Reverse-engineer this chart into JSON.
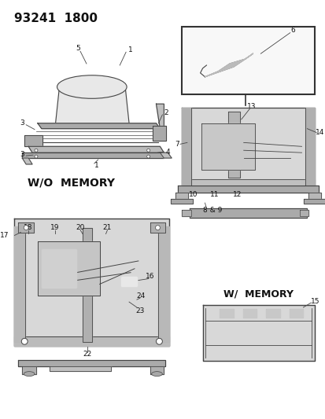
{
  "title": "93241  1800",
  "bg_color": "#ffffff",
  "fig_width": 4.14,
  "fig_height": 5.33,
  "dpi": 100,
  "text_color": "#111111",
  "line_color": "#444444",
  "labels": {
    "wo_memory": "W/O  MEMORY",
    "w_memory": "W/  MEMORY"
  },
  "font_size_title": 11,
  "font_size_label": 9,
  "font_size_partnum": 6.5,
  "seat_color": "#e8e8e8",
  "mech_color": "#d8d8d8",
  "dark_color": "#aaaaaa"
}
